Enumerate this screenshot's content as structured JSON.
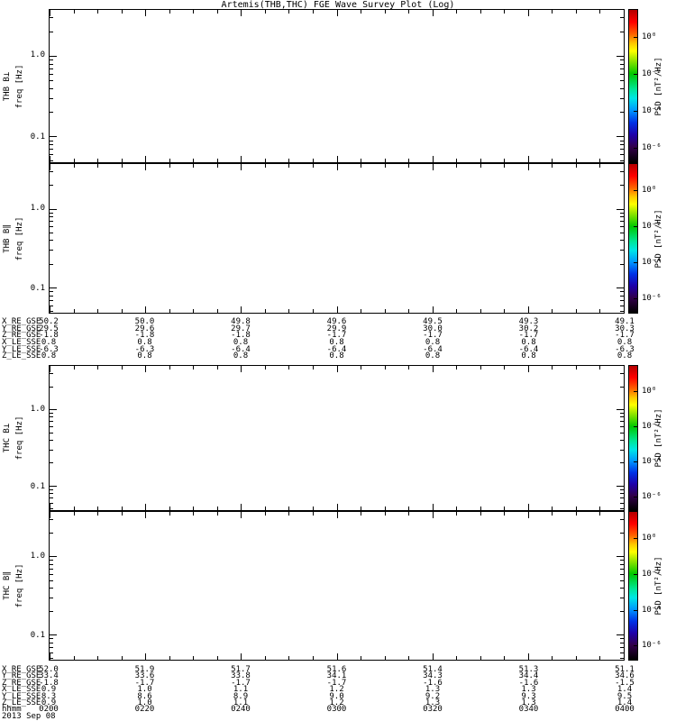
{
  "title": "Artemis(THB,THC) FGE Wave Survey Plot (Log)",
  "colors": {
    "background": "#ffffff",
    "axis": "#000000",
    "text": "#000000",
    "colorbar_gradient": [
      "#b40000 0%",
      "#ff0000 8%",
      "#ff6400 16%",
      "#ffc800 22%",
      "#ffff00 27%",
      "#96e600 33%",
      "#00c800 42%",
      "#00e696 52%",
      "#00e6e6 58%",
      "#0096ff 66%",
      "#0032e6 74%",
      "#1e00aa 82%",
      "#32004b 90%",
      "#1a0026 95%",
      "#000000 100%"
    ]
  },
  "chart_data": {
    "type": "heatmap",
    "title": "Artemis(THB,THC) FGE Wave Survey Plot (Log)",
    "note": "All four spectrogram panels are blank - no PSD spectral data is plotted for this interval.",
    "panels": [
      {
        "id": "thb-bperp",
        "label": "THB B⊥",
        "ylabel": "freq [Hz]"
      },
      {
        "id": "thb-bpar",
        "label": "THB B∥",
        "ylabel": "freq [Hz]"
      },
      {
        "id": "thc-bperp",
        "label": "THC B⊥",
        "ylabel": "freq [Hz]"
      },
      {
        "id": "thc-bpar",
        "label": "THC B∥",
        "ylabel": "freq [Hz]"
      }
    ],
    "y_axis": {
      "scale": "log",
      "tick_labels": [
        "1.0",
        "0.1"
      ],
      "tick_values": [
        1.0,
        0.1
      ],
      "range_hz": [
        0.048,
        3.7
      ]
    },
    "x_axis": {
      "label": "hhmm",
      "date": "2013 Sep 08",
      "tick_labels": [
        "0200",
        "0220",
        "0240",
        "0300",
        "0320",
        "0340",
        "0400"
      ]
    },
    "colorbar": {
      "label": "PSD [nT²/Hz]",
      "tick_labels": [
        "10⁰",
        "10⁻²",
        "10⁻⁴",
        "10⁻⁶"
      ],
      "tick_values": [
        1,
        0.01,
        0.0001,
        1e-06
      ]
    },
    "ephemeris_blocks": [
      {
        "spacecraft": "THB",
        "rows": [
          {
            "label": "X_RE_GSE",
            "values": [
              "50.2",
              "50.0",
              "49.8",
              "49.6",
              "49.5",
              "49.3",
              "49.1"
            ]
          },
          {
            "label": "Y_RE_GSE",
            "values": [
              "29.5",
              "29.6",
              "29.7",
              "29.9",
              "30.0",
              "30.2",
              "30.3"
            ]
          },
          {
            "label": "Z_RE_GSE",
            "values": [
              "-1.8",
              "-1.8",
              "-1.8",
              "-1.7",
              "-1.7",
              "-1.7",
              "-1.7"
            ]
          },
          {
            "label": "X_LE_SSE",
            "values": [
              "0.8",
              "0.8",
              "0.8",
              "0.8",
              "0.8",
              "0.8",
              "0.8"
            ]
          },
          {
            "label": "Y_LE_SSE",
            "values": [
              "-6.3",
              "-6.3",
              "-6.4",
              "-6.4",
              "-6.4",
              "-6.4",
              "-6.3"
            ]
          },
          {
            "label": "Z_LE_SSE",
            "values": [
              "0.8",
              "0.8",
              "0.8",
              "0.8",
              "0.8",
              "0.8",
              "0.8"
            ]
          }
        ]
      },
      {
        "spacecraft": "THC",
        "rows": [
          {
            "label": "X_RE_GSE",
            "values": [
              "52.0",
              "51.9",
              "51.7",
              "51.6",
              "51.4",
              "51.3",
              "51.1"
            ]
          },
          {
            "label": "Y_RE_GSE",
            "values": [
              "33.4",
              "33.6",
              "33.8",
              "34.1",
              "34.3",
              "34.4",
              "34.6"
            ]
          },
          {
            "label": "Z_RE_GSE",
            "values": [
              "-1.8",
              "-1.7",
              "-1.7",
              "-1.7",
              "-1.6",
              "-1.6",
              "-1.5"
            ]
          },
          {
            "label": "X_LE_SSE",
            "values": [
              "0.9",
              "1.0",
              "1.1",
              "1.2",
              "1.3",
              "1.3",
              "1.4"
            ]
          },
          {
            "label": "Y_LE_SSE",
            "values": [
              "8.3",
              "8.6",
              "8.9",
              "9.0",
              "9.2",
              "9.3",
              "9.5"
            ]
          },
          {
            "label": "Z_LE_SSE",
            "values": [
              "0.9",
              "1.0",
              "1.1",
              "1.2",
              "1.3",
              "1.3",
              "1.4"
            ]
          }
        ]
      }
    ]
  }
}
